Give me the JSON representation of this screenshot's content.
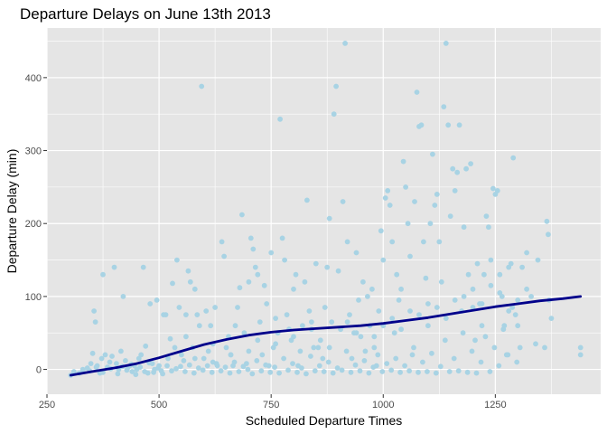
{
  "chart_data": {
    "type": "scatter",
    "title": "Departure Delays on June 13th 2013",
    "xlabel": "Scheduled Departure Times",
    "ylabel": "Departure Delay (min)",
    "xlim": [
      250,
      1485
    ],
    "ylim": [
      -34,
      468
    ],
    "x_ticks": [
      250,
      500,
      750,
      1000,
      1250
    ],
    "y_ticks": [
      0,
      100,
      200,
      300,
      400
    ],
    "x_minor_ticks": [
      375,
      625,
      875,
      1125,
      1375
    ],
    "y_minor_ticks": [
      50,
      150,
      250,
      350,
      450
    ],
    "grid": true,
    "legend": "none",
    "colors": {
      "panel_background": "#e5e5e5",
      "grid": "#ffffff",
      "points": "#a8d3e4",
      "smooth_line": "#00008b"
    },
    "points": [
      [
        303,
        -8
      ],
      [
        310,
        -3
      ],
      [
        322,
        -5
      ],
      [
        330,
        -2
      ],
      [
        340,
        2
      ],
      [
        348,
        8
      ],
      [
        352,
        22
      ],
      [
        355,
        80
      ],
      [
        358,
        65
      ],
      [
        362,
        5
      ],
      [
        368,
        -5
      ],
      [
        372,
        15
      ],
      [
        375,
        130
      ],
      [
        380,
        20
      ],
      [
        385,
        3
      ],
      [
        390,
        10
      ],
      [
        395,
        18
      ],
      [
        400,
        140
      ],
      [
        405,
        8
      ],
      [
        410,
        0
      ],
      [
        415,
        25
      ],
      [
        420,
        100
      ],
      [
        425,
        12
      ],
      [
        430,
        2
      ],
      [
        435,
        5
      ],
      [
        440,
        -3
      ],
      [
        445,
        5
      ],
      [
        450,
        0
      ],
      [
        455,
        15
      ],
      [
        460,
        20
      ],
      [
        465,
        140
      ],
      [
        470,
        32
      ],
      [
        475,
        -5
      ],
      [
        480,
        90
      ],
      [
        485,
        8
      ],
      [
        490,
        0
      ],
      [
        495,
        95
      ],
      [
        500,
        5
      ],
      [
        505,
        -2
      ],
      [
        510,
        75
      ],
      [
        515,
        75
      ],
      [
        520,
        15
      ],
      [
        525,
        42
      ],
      [
        530,
        118
      ],
      [
        535,
        30
      ],
      [
        540,
        150
      ],
      [
        545,
        85
      ],
      [
        550,
        20
      ],
      [
        555,
        12
      ],
      [
        560,
        75
      ],
      [
        565,
        135
      ],
      [
        570,
        120
      ],
      [
        575,
        30
      ],
      [
        580,
        110
      ],
      [
        585,
        75
      ],
      [
        590,
        60
      ],
      [
        595,
        388
      ],
      [
        600,
        15
      ],
      [
        605,
        80
      ],
      [
        610,
        25
      ],
      [
        615,
        60
      ],
      [
        620,
        10
      ],
      [
        625,
        85
      ],
      [
        630,
        5
      ],
      [
        640,
        175
      ],
      [
        645,
        155
      ],
      [
        650,
        30
      ],
      [
        655,
        45
      ],
      [
        660,
        20
      ],
      [
        665,
        5
      ],
      [
        670,
        60
      ],
      [
        675,
        85
      ],
      [
        680,
        112
      ],
      [
        685,
        212
      ],
      [
        690,
        50
      ],
      [
        695,
        8
      ],
      [
        700,
        120
      ],
      [
        705,
        180
      ],
      [
        710,
        165
      ],
      [
        715,
        140
      ],
      [
        720,
        130
      ],
      [
        725,
        65
      ],
      [
        730,
        20
      ],
      [
        735,
        115
      ],
      [
        740,
        90
      ],
      [
        745,
        5
      ],
      [
        750,
        160
      ],
      [
        755,
        30
      ],
      [
        760,
        70
      ],
      [
        765,
        50
      ],
      [
        770,
        343
      ],
      [
        775,
        180
      ],
      [
        780,
        150
      ],
      [
        785,
        75
      ],
      [
        790,
        55
      ],
      [
        795,
        40
      ],
      [
        800,
        110
      ],
      [
        805,
        130
      ],
      [
        810,
        5
      ],
      [
        815,
        25
      ],
      [
        820,
        60
      ],
      [
        825,
        120
      ],
      [
        830,
        232
      ],
      [
        835,
        80
      ],
      [
        840,
        65
      ],
      [
        845,
        30
      ],
      [
        850,
        145
      ],
      [
        855,
        30
      ],
      [
        860,
        40
      ],
      [
        865,
        15
      ],
      [
        870,
        85
      ],
      [
        875,
        140
      ],
      [
        880,
        207
      ],
      [
        885,
        65
      ],
      [
        890,
        350
      ],
      [
        895,
        388
      ],
      [
        900,
        135
      ],
      [
        905,
        55
      ],
      [
        910,
        230
      ],
      [
        915,
        447
      ],
      [
        920,
        175
      ],
      [
        925,
        75
      ],
      [
        930,
        15
      ],
      [
        935,
        50
      ],
      [
        940,
        160
      ],
      [
        945,
        95
      ],
      [
        950,
        45
      ],
      [
        955,
        120
      ],
      [
        960,
        25
      ],
      [
        965,
        100
      ],
      [
        970,
        60
      ],
      [
        975,
        110
      ],
      [
        980,
        30
      ],
      [
        985,
        5
      ],
      [
        990,
        80
      ],
      [
        995,
        190
      ],
      [
        1000,
        150
      ],
      [
        1005,
        235
      ],
      [
        1010,
        245
      ],
      [
        1015,
        225
      ],
      [
        1020,
        175
      ],
      [
        1025,
        50
      ],
      [
        1030,
        130
      ],
      [
        1035,
        95
      ],
      [
        1040,
        110
      ],
      [
        1045,
        285
      ],
      [
        1050,
        250
      ],
      [
        1055,
        200
      ],
      [
        1060,
        155
      ],
      [
        1065,
        20
      ],
      [
        1070,
        230
      ],
      [
        1075,
        380
      ],
      [
        1080,
        333
      ],
      [
        1085,
        335
      ],
      [
        1090,
        175
      ],
      [
        1095,
        125
      ],
      [
        1100,
        60
      ],
      [
        1105,
        200
      ],
      [
        1110,
        295
      ],
      [
        1115,
        225
      ],
      [
        1120,
        240
      ],
      [
        1125,
        175
      ],
      [
        1130,
        120
      ],
      [
        1135,
        360
      ],
      [
        1140,
        447
      ],
      [
        1145,
        335
      ],
      [
        1150,
        210
      ],
      [
        1155,
        275
      ],
      [
        1160,
        245
      ],
      [
        1165,
        270
      ],
      [
        1170,
        335
      ],
      [
        1175,
        80
      ],
      [
        1180,
        195
      ],
      [
        1185,
        275
      ],
      [
        1190,
        130
      ],
      [
        1195,
        282
      ],
      [
        1200,
        110
      ],
      [
        1205,
        40
      ],
      [
        1210,
        145
      ],
      [
        1215,
        90
      ],
      [
        1220,
        60
      ],
      [
        1225,
        130
      ],
      [
        1230,
        210
      ],
      [
        1235,
        195
      ],
      [
        1240,
        150
      ],
      [
        1245,
        248
      ],
      [
        1250,
        240
      ],
      [
        1255,
        245
      ],
      [
        1260,
        130
      ],
      [
        1265,
        100
      ],
      [
        1270,
        60
      ],
      [
        1275,
        20
      ],
      [
        1280,
        140
      ],
      [
        1285,
        145
      ],
      [
        1290,
        290
      ],
      [
        1295,
        75
      ],
      [
        1300,
        60
      ],
      [
        1305,
        30
      ],
      [
        1310,
        140
      ],
      [
        1320,
        160
      ],
      [
        1330,
        100
      ],
      [
        1340,
        35
      ],
      [
        1345,
        150
      ],
      [
        1360,
        30
      ],
      [
        1365,
        203
      ],
      [
        1368,
        185
      ],
      [
        1370,
        95
      ],
      [
        1375,
        70
      ],
      [
        1440,
        20
      ],
      [
        1440,
        30
      ],
      [
        330,
        0
      ],
      [
        345,
        -2
      ],
      [
        360,
        3
      ],
      [
        375,
        -4
      ],
      [
        392,
        1
      ],
      [
        408,
        -6
      ],
      [
        418,
        4
      ],
      [
        428,
        -1
      ],
      [
        438,
        7
      ],
      [
        448,
        -7
      ],
      [
        458,
        3
      ],
      [
        468,
        -3
      ],
      [
        478,
        9
      ],
      [
        488,
        -4
      ],
      [
        498,
        2
      ],
      [
        508,
        -6
      ],
      [
        518,
        5
      ],
      [
        528,
        -2
      ],
      [
        538,
        1
      ],
      [
        548,
        4
      ],
      [
        558,
        -3
      ],
      [
        568,
        6
      ],
      [
        578,
        -5
      ],
      [
        588,
        2
      ],
      [
        598,
        -1
      ],
      [
        608,
        5
      ],
      [
        618,
        -4
      ],
      [
        628,
        8
      ],
      [
        638,
        -2
      ],
      [
        648,
        3
      ],
      [
        658,
        -5
      ],
      [
        668,
        10
      ],
      [
        678,
        -3
      ],
      [
        688,
        4
      ],
      [
        698,
        0
      ],
      [
        708,
        -6
      ],
      [
        718,
        12
      ],
      [
        728,
        -2
      ],
      [
        738,
        6
      ],
      [
        748,
        -4
      ],
      [
        758,
        3
      ],
      [
        768,
        -5
      ],
      [
        778,
        15
      ],
      [
        788,
        -1
      ],
      [
        798,
        8
      ],
      [
        808,
        -4
      ],
      [
        818,
        2
      ],
      [
        828,
        -6
      ],
      [
        838,
        18
      ],
      [
        848,
        -2
      ],
      [
        858,
        5
      ],
      [
        868,
        -3
      ],
      [
        878,
        10
      ],
      [
        888,
        -5
      ],
      [
        898,
        2
      ],
      [
        908,
        -1
      ],
      [
        918,
        25
      ],
      [
        928,
        -4
      ],
      [
        938,
        6
      ],
      [
        948,
        -2
      ],
      [
        958,
        12
      ],
      [
        968,
        -5
      ],
      [
        978,
        3
      ],
      [
        988,
        20
      ],
      [
        998,
        -3
      ],
      [
        1008,
        8
      ],
      [
        1018,
        -1
      ],
      [
        1028,
        15
      ],
      [
        1038,
        -4
      ],
      [
        1048,
        5
      ],
      [
        1058,
        -2
      ],
      [
        1068,
        30
      ],
      [
        1078,
        -4
      ],
      [
        1088,
        10
      ],
      [
        1098,
        -3
      ],
      [
        1108,
        22
      ],
      [
        1118,
        -5
      ],
      [
        1128,
        4
      ],
      [
        1138,
        40
      ],
      [
        1148,
        -3
      ],
      [
        1158,
        15
      ],
      [
        1168,
        -2
      ],
      [
        1178,
        50
      ],
      [
        1188,
        -4
      ],
      [
        1198,
        25
      ],
      [
        1208,
        -5
      ],
      [
        1218,
        10
      ],
      [
        1228,
        45
      ],
      [
        1238,
        -3
      ],
      [
        1248,
        30
      ],
      [
        1258,
        5
      ],
      [
        1268,
        55
      ],
      [
        1278,
        20
      ],
      [
        1288,
        85
      ],
      [
        1298,
        10
      ],
      [
        560,
        45
      ],
      [
        580,
        15
      ],
      [
        620,
        35
      ],
      [
        660,
        20
      ],
      [
        700,
        25
      ],
      [
        720,
        40
      ],
      [
        760,
        35
      ],
      [
        800,
        45
      ],
      [
        840,
        55
      ],
      [
        880,
        30
      ],
      [
        920,
        65
      ],
      [
        940,
        50
      ],
      [
        980,
        45
      ],
      [
        1000,
        60
      ],
      [
        1020,
        70
      ],
      [
        1040,
        55
      ],
      [
        1060,
        80
      ],
      [
        1080,
        75
      ],
      [
        1100,
        90
      ],
      [
        1120,
        85
      ],
      [
        1140,
        70
      ],
      [
        1160,
        95
      ],
      [
        1180,
        100
      ],
      [
        1200,
        85
      ],
      [
        1220,
        90
      ],
      [
        1240,
        115
      ],
      [
        1260,
        105
      ],
      [
        1280,
        80
      ],
      [
        1300,
        95
      ],
      [
        1320,
        110
      ]
    ],
    "smooth_line": [
      [
        303,
        -8
      ],
      [
        350,
        -3
      ],
      [
        400,
        2
      ],
      [
        450,
        8
      ],
      [
        500,
        16
      ],
      [
        550,
        25
      ],
      [
        600,
        34
      ],
      [
        650,
        41
      ],
      [
        700,
        47
      ],
      [
        750,
        51
      ],
      [
        800,
        54
      ],
      [
        850,
        56
      ],
      [
        900,
        58
      ],
      [
        950,
        60
      ],
      [
        1000,
        63
      ],
      [
        1050,
        67
      ],
      [
        1100,
        71
      ],
      [
        1150,
        76
      ],
      [
        1200,
        81
      ],
      [
        1250,
        86
      ],
      [
        1300,
        90
      ],
      [
        1350,
        94
      ],
      [
        1400,
        97
      ],
      [
        1440,
        100
      ]
    ]
  }
}
